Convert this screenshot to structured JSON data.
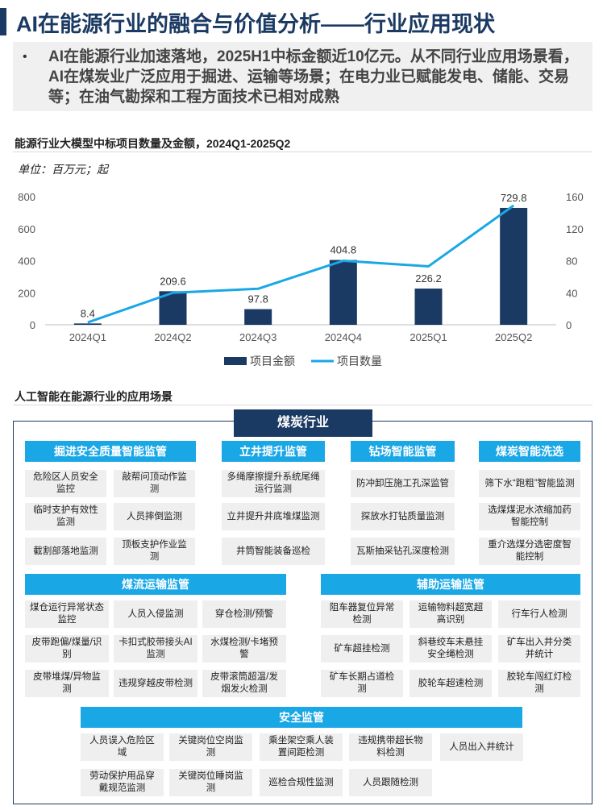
{
  "header": {
    "title": "AI在能源行业的融合与价值分析——行业应用现状"
  },
  "summary": {
    "bullet": "•",
    "text": "AI在能源行业加速落地，2025H1中标金额近10亿元。从不同行业应用场景看，AI在煤炭业广泛应用于掘进、运输等场景；在电力业已赋能发电、储能、交易等；在油气勘探和工程方面技术已相对成熟"
  },
  "chart_section": {
    "title": "能源行业大模型中标项目数量及金额，2024Q1-2025Q2",
    "unit": "单位：百万元；起"
  },
  "chart_data": {
    "type": "bar",
    "categories": [
      "2024Q1",
      "2024Q2",
      "2024Q3",
      "2024Q4",
      "2025Q1",
      "2025Q2"
    ],
    "series": [
      {
        "name": "项目金额",
        "type": "bar",
        "axis": "left",
        "color": "#1b3a63",
        "values": [
          8.4,
          209.6,
          97.8,
          404.8,
          226.2,
          729.8
        ]
      },
      {
        "name": "项目数量",
        "type": "line",
        "axis": "right",
        "color": "#1aa7e6",
        "values": [
          3,
          40,
          45,
          80,
          73,
          149
        ]
      }
    ],
    "data_labels": [
      "8.4",
      "209.6",
      "97.8",
      "404.8",
      "226.2",
      "729.8"
    ],
    "y_left": {
      "ylim": [
        0,
        800
      ],
      "ticks": [
        0,
        200,
        400,
        600,
        800
      ]
    },
    "y_right": {
      "ylim": [
        0,
        160
      ],
      "ticks": [
        0,
        40,
        80,
        120,
        160
      ]
    },
    "grid": false,
    "legend_position": "bottom"
  },
  "scenes": {
    "title": "人工智能在能源行业的应用场景",
    "industry": "煤炭行业",
    "groups": [
      {
        "category": "掘进安全质量智能监管",
        "items": [
          "危险区人员安全监控",
          "敲帮问顶动作监测",
          "临时支护有效性监测",
          "人员摔倒监测",
          "截割部落地监测",
          "顶板支护作业监测"
        ]
      },
      {
        "category": "立井提升监管",
        "items": [
          "多绳摩擦提升系统尾绳运行监测",
          "立井提升井底堆煤监测",
          "井筒智能装备巡检"
        ]
      },
      {
        "category": "钻场智能监管",
        "items": [
          "防冲卸压施工孔深监管",
          "探放水打钻质量监测",
          "瓦斯抽采钻孔深度检测"
        ]
      },
      {
        "category": "煤炭智能洗选",
        "items": [
          "筛下水“跑粗”智能监测",
          "选煤煤泥水浓缩加药智能控制",
          "重介选煤分选密度智能控制"
        ]
      },
      {
        "category": "煤流运输监管",
        "items": [
          "煤仓运行异常状态监控",
          "人员入侵监测",
          "穿仓检测/预警",
          "皮带跑偏/煤量/识别",
          "卡扣式胶带接头AI监测",
          "水煤检测/卡堵预警",
          "皮带堆煤/异物监测",
          "违规穿越皮带检测",
          "皮带滚筒超温/发烟发火检测"
        ]
      },
      {
        "category": "辅助运输监管",
        "items": [
          "阻车器复位异常检测",
          "运输物料超宽超高识别",
          "行车行人检测",
          "矿车超挂检测",
          "斜巷绞车未悬挂安全绳检测",
          "矿车出入井分类并统计",
          "矿车长期占道检测",
          "胶轮车超速检测",
          "胶轮车闯红灯检测"
        ]
      },
      {
        "category": "安全监管",
        "items": [
          "人员误入危险区域",
          "关键岗位空岗监测",
          "乘坐架空乘人装置间距检测",
          "违规携带超长物料检测",
          "人员出入井统计",
          "劳动保护用品穿戴规范监测",
          "关键岗位睡岗监测",
          "巡检合规性监测",
          "人员跟随检测"
        ]
      }
    ]
  }
}
